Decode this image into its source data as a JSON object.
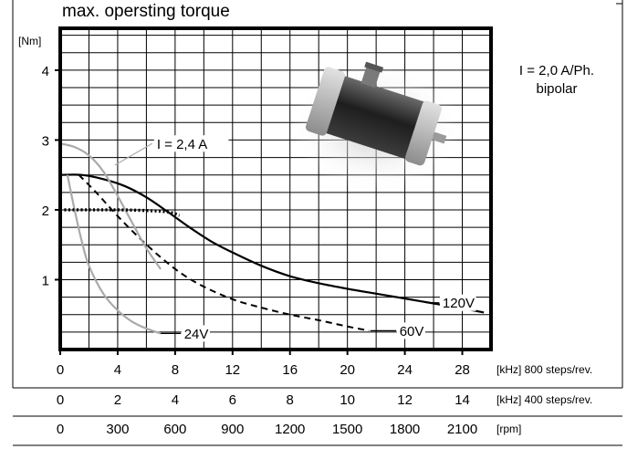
{
  "chart_data": {
    "type": "line",
    "title": "max. opersting torque",
    "ylabel": "[Nm]",
    "ylim": [
      0,
      4.6
    ],
    "yticks": [
      1,
      2,
      3,
      4
    ],
    "xlim": [
      0,
      30
    ],
    "grid": true,
    "info_text": [
      "I = 2,0 A/Ph.",
      "bipolar"
    ],
    "x_scales": [
      {
        "unit": "[kHz] 800 steps/rev.",
        "ticks": [
          {
            "v": 0,
            "label": "0"
          },
          {
            "v": 4,
            "label": "4"
          },
          {
            "v": 8,
            "label": "8"
          },
          {
            "v": 12,
            "label": "12"
          },
          {
            "v": 16,
            "label": "16"
          },
          {
            "v": 20,
            "label": "20"
          },
          {
            "v": 24,
            "label": "24"
          },
          {
            "v": 28,
            "label": "28"
          }
        ]
      },
      {
        "unit": "[kHz] 400 steps/rev.",
        "ticks": [
          {
            "v": 0,
            "label": "0"
          },
          {
            "v": 4,
            "label": "2"
          },
          {
            "v": 8,
            "label": "4"
          },
          {
            "v": 12,
            "label": "6"
          },
          {
            "v": 16,
            "label": "8"
          },
          {
            "v": 20,
            "label": "10"
          },
          {
            "v": 24,
            "label": "12"
          },
          {
            "v": 28,
            "label": "14"
          }
        ]
      },
      {
        "unit": "[rpm]",
        "ticks": [
          {
            "v": 0,
            "label": "0"
          },
          {
            "v": 4,
            "label": "300"
          },
          {
            "v": 8,
            "label": "600"
          },
          {
            "v": 12,
            "label": "900"
          },
          {
            "v": 16,
            "label": "1200"
          },
          {
            "v": 20,
            "label": "1500"
          },
          {
            "v": 24,
            "label": "1800"
          },
          {
            "v": 28,
            "label": "2100"
          }
        ]
      }
    ],
    "series": [
      {
        "name": "120V",
        "style": "solid",
        "color": "#000000",
        "x": [
          0,
          1.5,
          3,
          4.5,
          6,
          7.5,
          9,
          10.5,
          12,
          14,
          16,
          18,
          20,
          22,
          24,
          26,
          28,
          29.5
        ],
        "y": [
          2.5,
          2.5,
          2.44,
          2.34,
          2.18,
          1.97,
          1.75,
          1.55,
          1.39,
          1.2,
          1.05,
          0.95,
          0.87,
          0.8,
          0.73,
          0.66,
          0.59,
          0.53
        ]
      },
      {
        "name": "60V",
        "style": "dashed",
        "color": "#000000",
        "x": [
          1.3,
          2.5,
          4,
          5.5,
          7,
          8.5,
          10,
          12,
          14,
          16,
          18,
          20,
          21.5
        ],
        "y": [
          2.5,
          2.25,
          1.91,
          1.6,
          1.32,
          1.08,
          0.9,
          0.72,
          0.6,
          0.5,
          0.42,
          0.33,
          0.27
        ]
      },
      {
        "name": "24V",
        "style": "solid",
        "color": "#aaaaaa",
        "x": [
          0.5,
          1,
          1.5,
          2,
          3,
          4,
          5,
          6,
          7
        ],
        "y": [
          2.5,
          2.0,
          1.55,
          1.2,
          0.8,
          0.56,
          0.4,
          0.3,
          0.23
        ]
      },
      {
        "name": "I = 2,4 A",
        "style": "solid",
        "color": "#aaaaaa",
        "x": [
          0,
          1,
          2,
          3,
          4,
          5,
          6,
          7
        ],
        "y": [
          2.95,
          2.9,
          2.78,
          2.55,
          2.2,
          1.82,
          1.45,
          1.15
        ]
      },
      {
        "name": "",
        "style": "dotted",
        "color": "#000000",
        "x": [
          0,
          2,
          4,
          6,
          7.5,
          8.3
        ],
        "y": [
          2.0,
          2.0,
          2.0,
          1.99,
          1.97,
          1.92
        ]
      }
    ],
    "annotations": [
      {
        "text": "I = 2,4 A",
        "x": 6.6,
        "y": 2.95
      },
      {
        "text": "24V",
        "x": 8.5,
        "y": 0.23
      },
      {
        "text": "60V",
        "x": 23.5,
        "y": 0.27
      },
      {
        "text": "120V",
        "x": 26.5,
        "y": 0.67
      }
    ]
  },
  "colors": {
    "frame": "#000000",
    "grey_curve": "#aaaaaa",
    "motor_body": "#2e2e2e"
  },
  "image": {
    "icon": "stepper-motor-photo-icon"
  }
}
